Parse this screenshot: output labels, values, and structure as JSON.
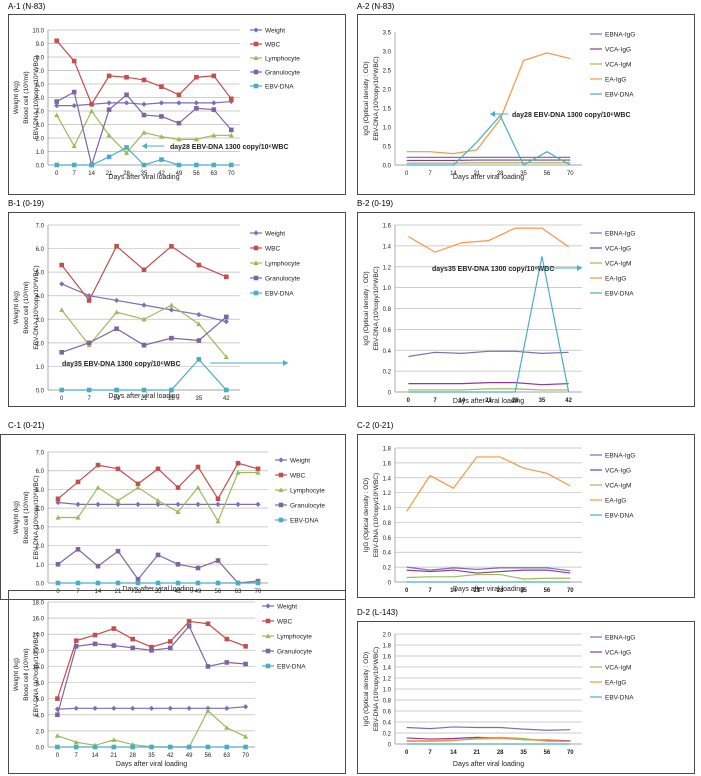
{
  "panels": [
    {
      "id": "A-1",
      "title": "A-1 (N-83)"
    },
    {
      "id": "A-2",
      "title": "A-2 (N-83)"
    },
    {
      "id": "B-1",
      "title": "B-1 (0-19)"
    },
    {
      "id": "B-2",
      "title": "B-2 (0-19)"
    },
    {
      "id": "C-1",
      "title": "C-1 (0-21)"
    },
    {
      "id": "C-2",
      "title": "C-2 (0-21)"
    },
    {
      "id": "D-2",
      "title": "D-2 (L-143)"
    }
  ],
  "chart_data": [
    {
      "id": "A-1",
      "type": "line",
      "title": "A-1 (N-83)",
      "xlabel": "Days after viral loading",
      "ylabel": [
        "Weight (kg)",
        "Blood cell (10³/ml)",
        "EBV-DNA (10³copy/10⁶WBC)"
      ],
      "ylim": [
        0,
        10
      ],
      "yticks": [
        "0.0",
        "1.0",
        "2.0",
        "3.0",
        "4.0",
        "5.0",
        "6.0",
        "7.0",
        "8.0",
        "9.0",
        "10.0"
      ],
      "categories": [
        "0",
        "7",
        "14",
        "21",
        "28",
        "35",
        "42",
        "49",
        "56",
        "63",
        "70"
      ],
      "grid": true,
      "legend": "right",
      "series": [
        {
          "name": "Weight",
          "color": "#7b6fb7",
          "marker": "diamond",
          "values": [
            4.4,
            4.4,
            4.5,
            4.6,
            4.6,
            4.5,
            4.6,
            4.6,
            4.6,
            4.6,
            4.7
          ]
        },
        {
          "name": "WBC",
          "color": "#c0504d",
          "marker": "square",
          "values": [
            9.2,
            7.7,
            4.5,
            6.6,
            6.5,
            6.3,
            5.8,
            5.2,
            6.5,
            6.6,
            4.9
          ]
        },
        {
          "name": "Lymphocyte",
          "color": "#9bbb59",
          "marker": "triangle",
          "values": [
            3.7,
            1.4,
            4.0,
            2.2,
            0.9,
            2.4,
            2.1,
            1.9,
            1.9,
            2.2,
            2.2
          ]
        },
        {
          "name": "Granulocyte",
          "color": "#8064a2",
          "marker": "square",
          "values": [
            4.7,
            5.4,
            0.0,
            4.1,
            5.2,
            3.7,
            3.6,
            3.1,
            4.2,
            4.1,
            2.6
          ]
        },
        {
          "name": "EBV-DNA",
          "color": "#4bacc6",
          "marker": "square",
          "values": [
            0,
            0,
            0,
            0.6,
            1.3,
            0,
            0.4,
            0,
            0,
            0,
            0
          ]
        }
      ],
      "annotation": "day28 EBV-DNA 1300 copy/10⁶WBC"
    },
    {
      "id": "A-2",
      "type": "line",
      "title": "A-2 (N-83)",
      "xlabel": "Days after viral loading",
      "ylabel": [
        "IgG (Optical density : OD)",
        "EBV-DNA (10³copy/10⁶WBC)"
      ],
      "ylim": [
        0,
        3.5
      ],
      "yticks": [
        "0.0",
        "0.5",
        "1.0",
        "1.5",
        "2.0",
        "2.5",
        "3.0",
        "3.5"
      ],
      "categories": [
        "0",
        "7",
        "14",
        "21",
        "28",
        "35",
        "56",
        "70"
      ],
      "grid": false,
      "legend": "right",
      "series": [
        {
          "name": "EBNA-IgG",
          "color": "#7b6fb7",
          "values": [
            0.2,
            0.2,
            0.2,
            0.2,
            0.2,
            0.2,
            0.2,
            0.2
          ]
        },
        {
          "name": "VCA-IgG",
          "color": "#8e3a8e",
          "values": [
            0.12,
            0.12,
            0.12,
            0.13,
            0.13,
            0.13,
            0.13,
            0.13
          ]
        },
        {
          "name": "VCA-IgM",
          "color": "#9bbb59",
          "values": [
            0.05,
            0.05,
            0.05,
            0.06,
            0.06,
            0.06,
            0.06,
            0.06
          ]
        },
        {
          "name": "EA-IgG",
          "color": "#f79646",
          "values": [
            0.35,
            0.35,
            0.3,
            0.4,
            1.2,
            2.75,
            2.95,
            2.8
          ]
        },
        {
          "name": "EBV-DNA",
          "color": "#4bacc6",
          "values": [
            0,
            0,
            0,
            0.6,
            1.3,
            0,
            0.35,
            0
          ]
        }
      ],
      "annotation": "day28 EBV-DNA 1300 copy/10⁶WBC"
    },
    {
      "id": "B-1",
      "type": "line",
      "title": "B-1 (0-19)",
      "xlabel": "Days after viral loading",
      "ylabel": [
        "Weight (kg)",
        "Blood cell (10³/ml)",
        "EBV-DNA (10³copy/10⁶WBC)"
      ],
      "ylim": [
        0,
        7
      ],
      "yticks": [
        "0.0",
        "1.0",
        "2.0",
        "3.0",
        "4.0",
        "5.0",
        "6.0",
        "7.0"
      ],
      "categories": [
        "0",
        "7",
        "14",
        "21",
        "28",
        "35",
        "42"
      ],
      "grid": true,
      "legend": "right",
      "series": [
        {
          "name": "Weight",
          "color": "#7b6fb7",
          "marker": "diamond",
          "values": [
            4.5,
            4.0,
            3.8,
            3.6,
            3.4,
            3.2,
            2.9
          ]
        },
        {
          "name": "WBC",
          "color": "#c0504d",
          "marker": "square",
          "values": [
            5.3,
            3.8,
            6.1,
            5.1,
            6.1,
            5.3,
            4.8
          ]
        },
        {
          "name": "Lymphocyte",
          "color": "#9bbb59",
          "marker": "triangle",
          "values": [
            3.4,
            1.9,
            3.3,
            3.0,
            3.6,
            2.8,
            1.4
          ]
        },
        {
          "name": "Granulocyte",
          "color": "#8064a2",
          "marker": "square",
          "values": [
            1.6,
            2.0,
            2.6,
            1.9,
            2.2,
            2.1,
            3.1
          ]
        },
        {
          "name": "EBV-DNA",
          "color": "#4bacc6",
          "marker": "square",
          "values": [
            0,
            0,
            0,
            0,
            0,
            1.3,
            0
          ]
        }
      ],
      "annotation": "day35 EBV-DNA 1300 copy/10⁶WBC"
    },
    {
      "id": "B-2",
      "type": "line",
      "title": "B-2 (0-19)",
      "xlabel": "Days after viral loading",
      "ylabel": [
        "IgG (Optical density : OD)",
        "EBV-DNA (10³copy/10⁶WBC)"
      ],
      "ylim": [
        0,
        1.6
      ],
      "yticks": [
        "0",
        "0.2",
        "0.4",
        "0.6",
        "0.8",
        "1.0",
        "1.2",
        "1.4",
        "1.6"
      ],
      "categories": [
        "0",
        "7",
        "14",
        "21",
        "28",
        "35",
        "42"
      ],
      "grid": true,
      "legend": "right",
      "series": [
        {
          "name": "EBNA-IgG",
          "color": "#7b6fb7",
          "values": [
            0.34,
            0.38,
            0.37,
            0.39,
            0.39,
            0.37,
            0.38
          ]
        },
        {
          "name": "VCA-IgG",
          "color": "#8e3a8e",
          "values": [
            0.08,
            0.08,
            0.08,
            0.09,
            0.09,
            0.07,
            0.08
          ]
        },
        {
          "name": "VCA-IgM",
          "color": "#9bbb59",
          "values": [
            0.02,
            0.02,
            0.02,
            0.03,
            0.03,
            0.02,
            0.02
          ]
        },
        {
          "name": "EA-IgG",
          "color": "#f79646",
          "values": [
            1.49,
            1.34,
            1.43,
            1.45,
            1.57,
            1.57,
            1.39
          ]
        },
        {
          "name": "EBV-DNA",
          "color": "#4bacc6",
          "values": [
            0,
            0,
            0,
            0,
            0,
            1.3,
            0
          ]
        }
      ],
      "annotation": "days35 EBV-DNA 1300 copy/10⁶WBC"
    },
    {
      "id": "C-1",
      "type": "line",
      "title": "C-1 (0-21)",
      "xlabel": "Days after viral loading",
      "ylabel": [
        "Weight (kg)",
        "Blood cell (10³/ml)",
        "EBV-DNA (10³copy/10⁶WBC)"
      ],
      "ylim": [
        0,
        7
      ],
      "yticks": [
        "0.0",
        "1.0",
        "2.0",
        "3.0",
        "4.0",
        "5.0",
        "6.0",
        "7.0"
      ],
      "categories": [
        "0",
        "7",
        "14",
        "21",
        "28",
        "35",
        "42",
        "49",
        "56",
        "63",
        "70"
      ],
      "grid": true,
      "legend": "right",
      "series": [
        {
          "name": "Weight",
          "color": "#7b6fb7",
          "marker": "diamond",
          "values": [
            4.3,
            4.2,
            4.2,
            4.2,
            4.2,
            4.2,
            4.2,
            4.2,
            4.2,
            4.2,
            4.2
          ]
        },
        {
          "name": "WBC",
          "color": "#c0504d",
          "marker": "square",
          "values": [
            4.5,
            5.4,
            6.3,
            6.1,
            5.3,
            6.1,
            5.1,
            6.2,
            4.5,
            6.4,
            6.1
          ]
        },
        {
          "name": "Lymphocyte",
          "color": "#9bbb59",
          "marker": "triangle",
          "values": [
            3.5,
            3.5,
            5.1,
            4.4,
            5.1,
            4.4,
            3.8,
            5.1,
            3.3,
            5.9,
            5.9
          ]
        },
        {
          "name": "Granulocyte",
          "color": "#8064a2",
          "marker": "square",
          "values": [
            1.0,
            1.8,
            0.9,
            1.7,
            0.2,
            1.5,
            1.0,
            0.8,
            1.2,
            0.0,
            0.1
          ]
        },
        {
          "name": "EBV-DNA",
          "color": "#4bacc6",
          "marker": "square",
          "values": [
            0,
            0,
            0,
            0,
            0,
            0,
            0,
            0,
            0,
            0,
            0
          ]
        }
      ]
    },
    {
      "id": "C-2",
      "type": "line",
      "title": "C-2 (0-21)",
      "xlabel": "Days after viral loading",
      "ylabel": [
        "IgG (Optical density : OD)",
        "EBV-DNA (10³copy/10⁶WBC)"
      ],
      "ylim": [
        0,
        1.8
      ],
      "yticks": [
        "0",
        "0.2",
        "0.4",
        "0.6",
        "0.8",
        "1.0",
        "1.2",
        "1.4",
        "1.6",
        "1.8"
      ],
      "categories": [
        "0",
        "7",
        "14",
        "21",
        "28",
        "35",
        "56",
        "70"
      ],
      "grid": true,
      "legend": "right",
      "series": [
        {
          "name": "EBNA-IgG",
          "color": "#7b6fb7",
          "values": [
            0.2,
            0.16,
            0.19,
            0.17,
            0.19,
            0.19,
            0.19,
            0.15
          ]
        },
        {
          "name": "VCA-IgG",
          "color": "#8e3a8e",
          "values": [
            0.16,
            0.14,
            0.16,
            0.12,
            0.14,
            0.16,
            0.16,
            0.12
          ]
        },
        {
          "name": "VCA-IgM",
          "color": "#9bbb59",
          "values": [
            0.06,
            0.07,
            0.07,
            0.1,
            0.1,
            0.04,
            0.05,
            0.05
          ]
        },
        {
          "name": "EA-IgG",
          "color": "#f79646",
          "values": [
            0.95,
            1.43,
            1.26,
            1.68,
            1.68,
            1.53,
            1.46,
            1.29
          ]
        },
        {
          "name": "EBV-DNA",
          "color": "#4bacc6",
          "values": [
            0,
            0,
            0,
            0,
            0,
            0,
            0,
            0
          ]
        }
      ]
    },
    {
      "id": "D-1",
      "type": "line",
      "title": "",
      "xlabel": "Days after viral loading",
      "ylabel": [
        "Weight (kg)",
        "Blood cell (10³/ml)",
        "EBV-DNA (10³copy/10⁶WBC)"
      ],
      "ylim": [
        0,
        18
      ],
      "yticks": [
        "0.0",
        "2.0",
        "4.0",
        "6.0",
        "8.0",
        "10.0",
        "12.0",
        "14.0",
        "16.0",
        "18.0"
      ],
      "categories": [
        "0",
        "7",
        "14",
        "21",
        "28",
        "35",
        "42",
        "49",
        "56",
        "63",
        "70"
      ],
      "grid": true,
      "legend": "right",
      "series": [
        {
          "name": "Weight",
          "color": "#7b6fb7",
          "marker": "diamond",
          "values": [
            4.7,
            4.8,
            4.8,
            4.8,
            4.8,
            4.8,
            4.8,
            4.8,
            4.8,
            4.8,
            5.0
          ]
        },
        {
          "name": "WBC",
          "color": "#c0504d",
          "marker": "square",
          "values": [
            6.0,
            13.2,
            13.9,
            14.7,
            13.4,
            12.4,
            13.1,
            15.6,
            15.3,
            13.4,
            12.5
          ]
        },
        {
          "name": "Lymphocyte",
          "color": "#9bbb59",
          "marker": "triangle",
          "values": [
            1.4,
            0.6,
            0.2,
            0.9,
            0.3,
            0.0,
            0.0,
            0.0,
            4.5,
            2.4,
            1.3
          ]
        },
        {
          "name": "Granulocyte",
          "color": "#8064a2",
          "marker": "square",
          "values": [
            4.0,
            12.5,
            12.8,
            12.6,
            12.3,
            12.0,
            12.3,
            15.0,
            10.0,
            10.5,
            10.3
          ]
        },
        {
          "name": "EBV-DNA",
          "color": "#4bacc6",
          "marker": "square",
          "values": [
            0,
            0,
            0,
            0,
            0,
            0,
            0,
            0,
            0,
            0,
            0
          ]
        }
      ]
    },
    {
      "id": "D-2",
      "type": "line",
      "title": "D-2 (L-143)",
      "xlabel": "Days after viral loading",
      "ylabel": [
        "IgG (Optical density : OD)",
        "EBV-DNA (10³copy/10⁶WBC)"
      ],
      "ylim": [
        0,
        2.0
      ],
      "yticks": [
        "0",
        "0.2",
        "0.4",
        "0.6",
        "0.8",
        "1.0",
        "1.2",
        "1.4",
        "1.6",
        "1.8",
        "2.0"
      ],
      "categories": [
        "0",
        "7",
        "14",
        "21",
        "28",
        "35",
        "56",
        "70"
      ],
      "grid": true,
      "legend": "right",
      "series": [
        {
          "name": "EBNA-IgG",
          "color": "#7b6fb7",
          "values": [
            0.3,
            0.28,
            0.31,
            0.3,
            0.3,
            0.27,
            0.25,
            0.26
          ]
        },
        {
          "name": "VCA-IgG",
          "color": "#8e3a8e",
          "values": [
            0.11,
            0.09,
            0.1,
            0.12,
            0.11,
            0.08,
            0.07,
            0.06
          ]
        },
        {
          "name": "VCA-IgM",
          "color": "#9bbb59",
          "values": [
            0.05,
            0.05,
            0.06,
            0.1,
            0.12,
            0.1,
            0.05,
            0.05
          ]
        },
        {
          "name": "EA-IgG",
          "color": "#f79646",
          "values": [
            0.06,
            0.06,
            0.07,
            0.09,
            0.1,
            0.08,
            0.06,
            0.05
          ]
        },
        {
          "name": "EBV-DNA",
          "color": "#4bacc6",
          "values": [
            0,
            0,
            0,
            0,
            0,
            0,
            0,
            0
          ]
        }
      ]
    }
  ]
}
